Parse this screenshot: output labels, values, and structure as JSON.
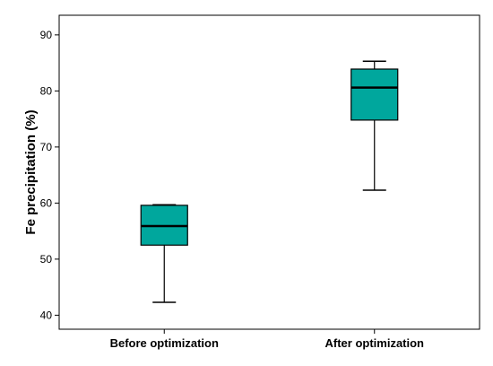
{
  "chart_data": {
    "type": "box",
    "title": "",
    "xlabel": "",
    "ylabel": "Fe precipitation (%)",
    "ylim": [
      37.5,
      93.5
    ],
    "yticks": [
      40,
      50,
      60,
      70,
      80,
      90
    ],
    "grid": false,
    "box_color": "#00A79D",
    "categories": [
      "Before optimization",
      "After optimization"
    ],
    "series": [
      {
        "category": "Before optimization",
        "min": 42.3,
        "q1": 52.5,
        "median": 55.9,
        "q3": 59.6,
        "max": 59.7
      },
      {
        "category": "After optimization",
        "min": 62.3,
        "q1": 74.8,
        "median": 80.6,
        "q3": 83.9,
        "max": 85.3
      }
    ]
  }
}
